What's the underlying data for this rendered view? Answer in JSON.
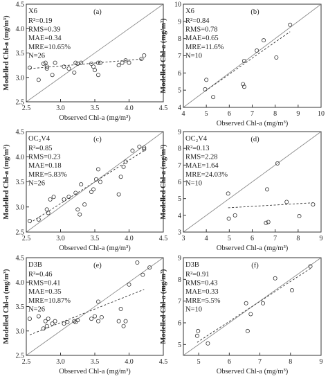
{
  "chart_data": [
    {
      "type": "scatter",
      "panel": "(a)",
      "site": "X6",
      "xlim": [
        2.5,
        4.5
      ],
      "ylim": [
        2.5,
        4.5
      ],
      "xticks": [
        "2.5",
        "3.0",
        "3.5",
        "4.0",
        "4.5"
      ],
      "yticks": [
        "2.5",
        "3.0",
        "3.5",
        "4.0",
        "4.5"
      ],
      "xlabel": "Observed Chl-a (mg/m³)",
      "ylabel": "Modelled Chl-a (mg/m³)",
      "stats": [
        "R²=0.19",
        "RMS=0.39",
        "MAE=0.34",
        "MRE=10.65%",
        "N=26"
      ],
      "points": [
        [
          2.55,
          3.2
        ],
        [
          2.68,
          2.95
        ],
        [
          2.75,
          3.28
        ],
        [
          2.78,
          3.3
        ],
        [
          2.8,
          3.22
        ],
        [
          2.8,
          3.18
        ],
        [
          2.88,
          3.05
        ],
        [
          2.92,
          3.3
        ],
        [
          3.05,
          3.22
        ],
        [
          3.12,
          3.18
        ],
        [
          3.2,
          3.1
        ],
        [
          3.22,
          3.3
        ],
        [
          3.25,
          3.28
        ],
        [
          3.3,
          3.3
        ],
        [
          3.45,
          3.28
        ],
        [
          3.48,
          3.22
        ],
        [
          3.5,
          3.15
        ],
        [
          3.55,
          3.05
        ],
        [
          3.55,
          3.3
        ],
        [
          3.58,
          3.3
        ],
        [
          3.85,
          3.25
        ],
        [
          3.9,
          3.3
        ],
        [
          3.95,
          3.35
        ],
        [
          4.0,
          3.3
        ],
        [
          4.18,
          3.38
        ],
        [
          4.22,
          3.45
        ]
      ],
      "fit": [
        [
          2.55,
          3.18
        ],
        [
          4.22,
          3.38
        ]
      ]
    },
    {
      "type": "scatter",
      "panel": "(b)",
      "site": "X6",
      "xlim": [
        4,
        10
      ],
      "ylim": [
        4,
        10
      ],
      "xticks": [
        "4",
        "5",
        "6",
        "7",
        "8",
        "9",
        "10"
      ],
      "yticks": [
        "4",
        "5",
        "6",
        "7",
        "8",
        "9",
        "10"
      ],
      "xlabel": "Observed Chl-a (mg/m³)",
      "ylabel": "Modelled Chl-a (mg/m³)",
      "stats": [
        "R²=0.84",
        "RMS=0.78",
        "MAE=0.65",
        "MRE=11.6%",
        "N=10"
      ],
      "points": [
        [
          4.95,
          5.05
        ],
        [
          5.0,
          5.6
        ],
        [
          5.3,
          4.6
        ],
        [
          6.6,
          5.35
        ],
        [
          6.65,
          5.2
        ],
        [
          6.65,
          6.7
        ],
        [
          7.2,
          7.3
        ],
        [
          7.5,
          7.9
        ],
        [
          8.05,
          6.9
        ],
        [
          8.65,
          8.8
        ]
      ],
      "fit": [
        [
          4.95,
          4.95
        ],
        [
          8.65,
          8.4
        ]
      ]
    },
    {
      "type": "scatter",
      "panel": "(c)",
      "site": "OC₂V4",
      "xlim": [
        2.5,
        4.5
      ],
      "ylim": [
        2.5,
        4.5
      ],
      "xticks": [
        "2.5",
        "3.0",
        "3.5",
        "4.0",
        "4.5"
      ],
      "yticks": [
        "2.5",
        "3.0",
        "3.5",
        "4.0",
        "4.5"
      ],
      "xlabel": "Observed Chl-a (mg/m³)",
      "ylabel": "Modelled Chl-a (mg/m³)",
      "stats": [
        "R²=0.85",
        "RMS=0.23",
        "MAE=0.18",
        "MRE=5.83%",
        "N=26"
      ],
      "points": [
        [
          2.55,
          2.72
        ],
        [
          2.68,
          2.75
        ],
        [
          2.8,
          2.95
        ],
        [
          2.82,
          2.88
        ],
        [
          2.85,
          3.15
        ],
        [
          2.9,
          3.2
        ],
        [
          3.05,
          3.15
        ],
        [
          3.12,
          3.2
        ],
        [
          3.22,
          3.28
        ],
        [
          3.25,
          2.95
        ],
        [
          3.28,
          2.85
        ],
        [
          3.3,
          3.45
        ],
        [
          3.35,
          3.05
        ],
        [
          3.45,
          3.3
        ],
        [
          3.48,
          3.35
        ],
        [
          3.52,
          3.55
        ],
        [
          3.55,
          3.75
        ],
        [
          3.58,
          3.5
        ],
        [
          3.85,
          3.25
        ],
        [
          3.88,
          3.6
        ],
        [
          3.92,
          3.8
        ],
        [
          3.95,
          3.9
        ],
        [
          4.05,
          4.12
        ],
        [
          4.15,
          4.2
        ],
        [
          4.22,
          4.18
        ],
        [
          4.22,
          4.15
        ]
      ],
      "fit": [
        [
          2.55,
          2.68
        ],
        [
          4.22,
          4.12
        ]
      ]
    },
    {
      "type": "scatter",
      "panel": "(d)",
      "site": "OC₂V4",
      "xlim": [
        3,
        9
      ],
      "ylim": [
        3,
        9
      ],
      "xticks": [
        "3",
        "4",
        "5",
        "6",
        "7",
        "8",
        "9"
      ],
      "yticks": [
        "3",
        "4",
        "5",
        "6",
        "7",
        "8",
        "9"
      ],
      "xlabel": "Observed Chl-a (mg/m³)",
      "ylabel": "Modelled Chl-a (mg/m³)",
      "stats": [
        "R²=0.13",
        "RMS=2.28",
        "MAE=1.64",
        "MRE=24.03%",
        "N=10"
      ],
      "points": [
        [
          4.95,
          5.3
        ],
        [
          4.98,
          3.8
        ],
        [
          5.25,
          4.0
        ],
        [
          6.6,
          3.55
        ],
        [
          6.7,
          3.6
        ],
        [
          6.65,
          5.55
        ],
        [
          7.1,
          7.1
        ],
        [
          7.5,
          4.8
        ],
        [
          8.05,
          3.95
        ],
        [
          8.65,
          4.65
        ]
      ],
      "fit": [
        [
          4.95,
          4.45
        ],
        [
          8.65,
          4.75
        ]
      ]
    },
    {
      "type": "scatter",
      "panel": "(e)",
      "site": "D3B",
      "xlim": [
        2.5,
        4.5
      ],
      "ylim": [
        2.5,
        4.5
      ],
      "xticks": [
        "2.5",
        "3.0",
        "3.5",
        "4.0",
        "4.5"
      ],
      "yticks": [
        "2.5",
        "3.0",
        "3.5",
        "4.0",
        "4.5"
      ],
      "xlabel": "Observed Chl-a (mg/m³)",
      "ylabel": "Modelled Chl-a (mg/m³)",
      "stats": [
        "R²=0.46",
        "RMS=0.41",
        "MAE=0.35",
        "MRE=10.87%",
        "N=26"
      ],
      "points": [
        [
          2.55,
          3.25
        ],
        [
          2.68,
          3.3
        ],
        [
          2.75,
          3.05
        ],
        [
          2.78,
          3.2
        ],
        [
          2.8,
          3.1
        ],
        [
          2.82,
          3.25
        ],
        [
          2.88,
          3.15
        ],
        [
          2.92,
          3.2
        ],
        [
          3.05,
          3.15
        ],
        [
          3.1,
          3.18
        ],
        [
          3.2,
          3.2
        ],
        [
          3.22,
          3.18
        ],
        [
          3.25,
          3.22
        ],
        [
          3.45,
          3.25
        ],
        [
          3.5,
          3.3
        ],
        [
          3.55,
          3.6
        ],
        [
          3.55,
          3.2
        ],
        [
          3.6,
          3.28
        ],
        [
          3.85,
          3.2
        ],
        [
          3.88,
          3.45
        ],
        [
          3.92,
          3.1
        ],
        [
          3.95,
          3.2
        ],
        [
          4.0,
          3.95
        ],
        [
          4.12,
          4.4
        ],
        [
          4.2,
          4.15
        ],
        [
          4.3,
          4.3
        ]
      ],
      "fit": [
        [
          2.55,
          2.92
        ],
        [
          4.22,
          3.85
        ]
      ]
    },
    {
      "type": "scatter",
      "panel": "(f)",
      "site": "D3B",
      "xlim": [
        4.5,
        9
      ],
      "ylim": [
        4.5,
        9
      ],
      "xticks": [
        "5",
        "6",
        "7",
        "8",
        "9"
      ],
      "yticks": [
        "5",
        "6",
        "7",
        "8",
        "9"
      ],
      "xlabel": "Observed Chl-a (mg/m³)",
      "ylabel": "Modelled Chl-a (mg/m³)",
      "stats": [
        "R²=0.91",
        "RMS=0.43",
        "MAE=0.33",
        "MRE=5.5%",
        "N=10"
      ],
      "points": [
        [
          4.95,
          5.4
        ],
        [
          4.98,
          5.62
        ],
        [
          5.3,
          5.05
        ],
        [
          6.55,
          6.9
        ],
        [
          6.6,
          5.62
        ],
        [
          6.7,
          6.4
        ],
        [
          7.1,
          6.9
        ],
        [
          7.5,
          8.05
        ],
        [
          8.05,
          7.5
        ],
        [
          8.65,
          8.6
        ]
      ],
      "fit": [
        [
          4.95,
          5.1
        ],
        [
          8.65,
          8.5
        ]
      ]
    }
  ]
}
